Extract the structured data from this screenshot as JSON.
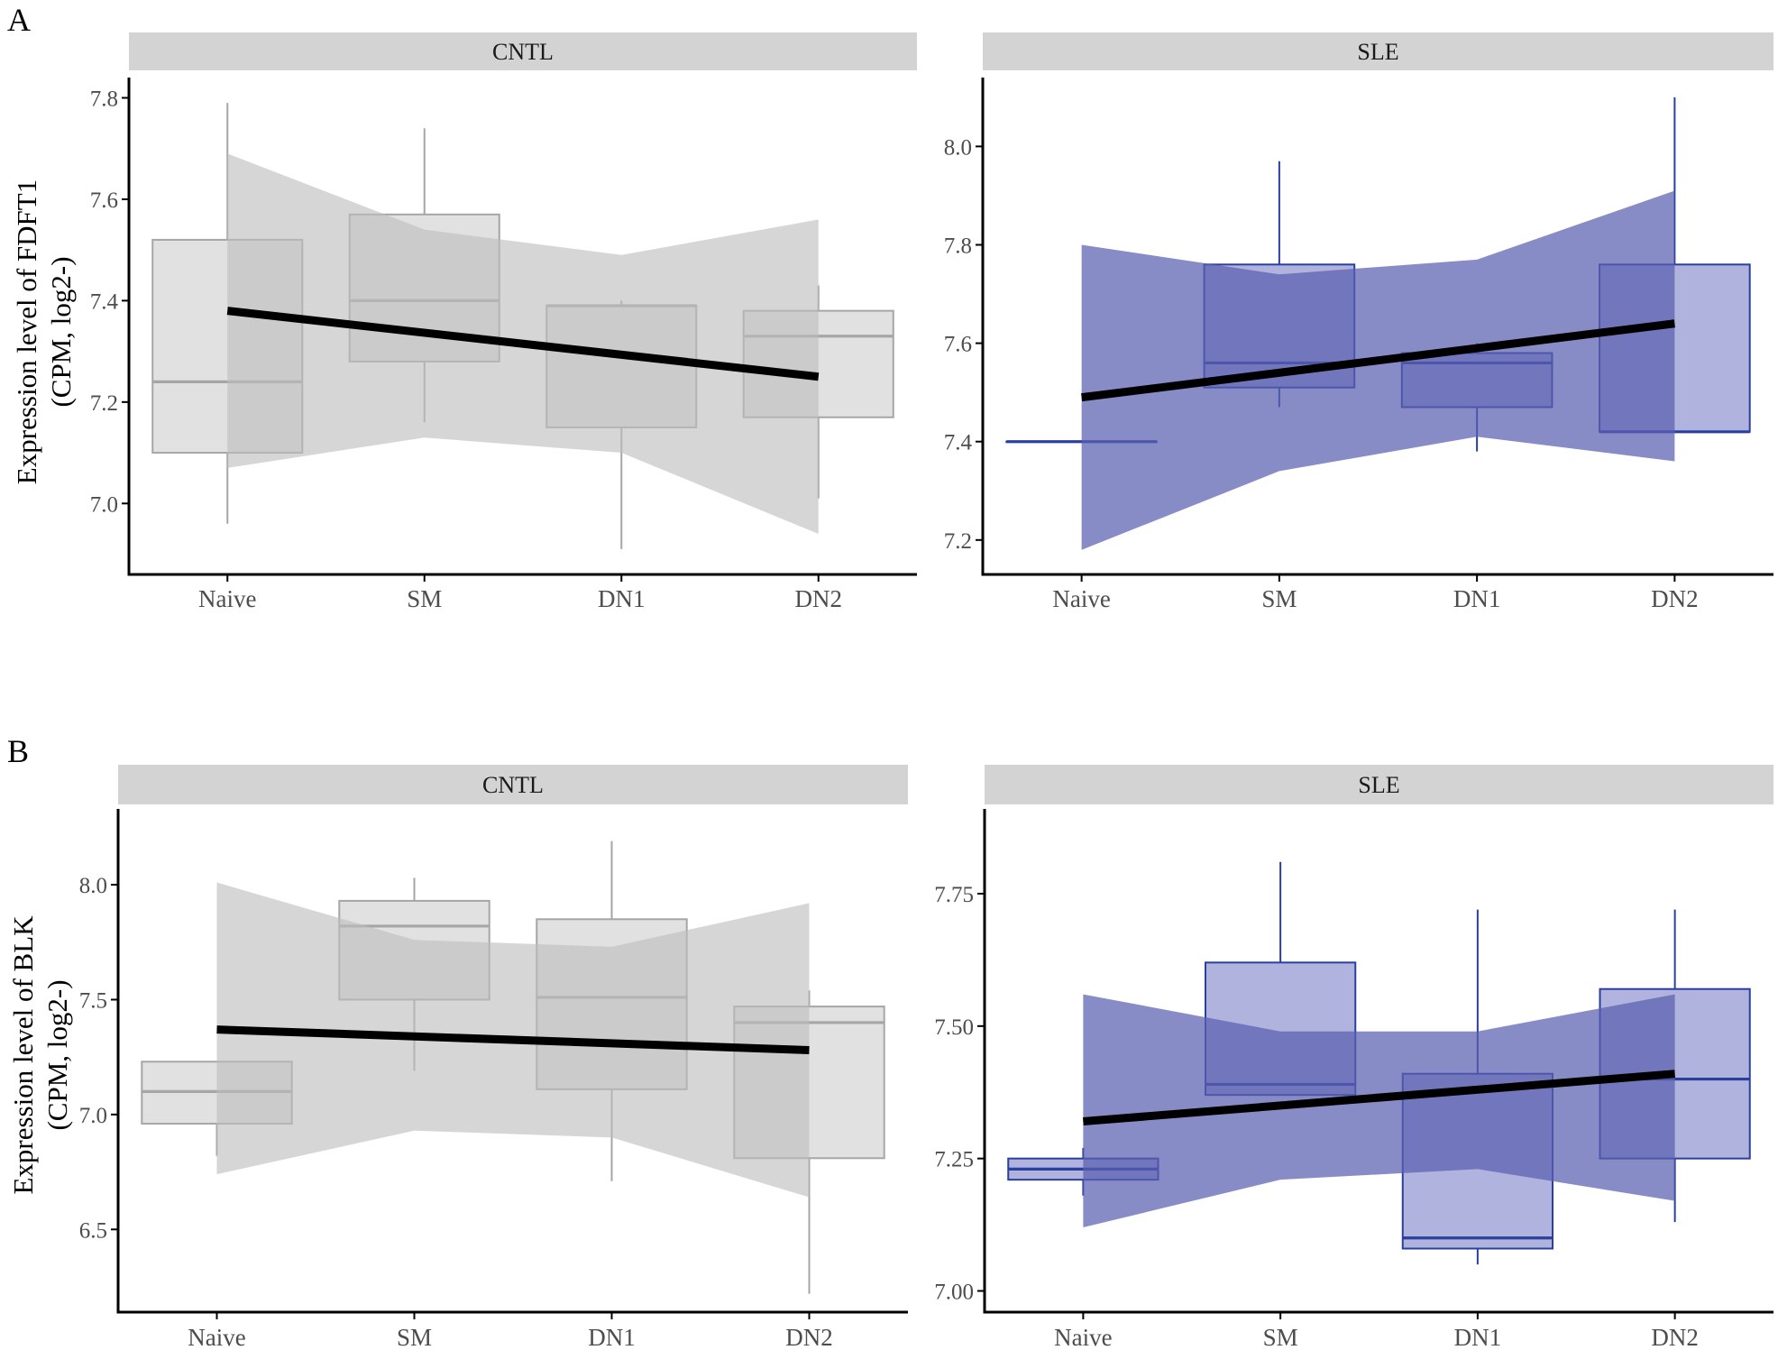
{
  "panel_labels": [
    "A",
    "B"
  ],
  "y_label_lines": {
    "A": [
      "Expression level of FDFT1",
      "(CPM, log2-)"
    ],
    "B": [
      "Expression level of BLK",
      "(CPM, log2-)"
    ]
  },
  "colors": {
    "cntl_box_fill": "#e1e1e1",
    "cntl_box_stroke": "#a6a6a6",
    "cntl_ribbon": "#bdbdbd",
    "sle_box_fill": "#b0b3dd",
    "sle_box_stroke": "#2b3f9e",
    "sle_ribbon": "#5a5fb0",
    "strip_bg": "#d3d3d3",
    "trend": "#000000"
  },
  "chart_data": [
    {
      "id": "A-CNTL",
      "row": "A",
      "type": "box",
      "strip": "CNTL",
      "categories": [
        "Naive",
        "SM",
        "DN1",
        "DN2"
      ],
      "yticks": [
        "7.0",
        "7.2",
        "7.4",
        "7.6",
        "7.8"
      ],
      "ylim": [
        6.86,
        7.84
      ],
      "boxes": [
        {
          "min": 6.96,
          "q1": 7.1,
          "median": 7.24,
          "q3": 7.52,
          "max": 7.79
        },
        {
          "min": 7.16,
          "q1": 7.28,
          "median": 7.4,
          "q3": 7.57,
          "max": 7.74
        },
        {
          "min": 6.91,
          "q1": 7.15,
          "median": 7.39,
          "q3": 7.39,
          "max": 7.4
        },
        {
          "min": 7.01,
          "q1": 7.17,
          "median": 7.33,
          "q3": 7.38,
          "max": 7.43
        }
      ],
      "trend": {
        "start": 7.38,
        "end": 7.25
      },
      "ribbon": {
        "upper": [
          7.69,
          7.54,
          7.49,
          7.56
        ],
        "lower": [
          7.07,
          7.13,
          7.1,
          6.94
        ]
      }
    },
    {
      "id": "A-SLE",
      "row": "A",
      "type": "box",
      "strip": "SLE",
      "categories": [
        "Naive",
        "SM",
        "DN1",
        "DN2"
      ],
      "yticks": [
        "7.2",
        "7.4",
        "7.6",
        "7.8",
        "8.0"
      ],
      "ylim": [
        7.13,
        8.14
      ],
      "boxes": [
        {
          "min": 7.4,
          "q1": 7.4,
          "median": 7.4,
          "q3": 7.4,
          "max": 7.4
        },
        {
          "min": 7.47,
          "q1": 7.51,
          "median": 7.56,
          "q3": 7.76,
          "max": 7.97
        },
        {
          "min": 7.38,
          "q1": 7.47,
          "median": 7.56,
          "q3": 7.58,
          "max": 7.6
        },
        {
          "min": 7.42,
          "q1": 7.42,
          "median": 7.42,
          "q3": 7.76,
          "max": 8.1
        }
      ],
      "trend": {
        "start": 7.49,
        "end": 7.64
      },
      "ribbon": {
        "upper": [
          7.8,
          7.74,
          7.77,
          7.91
        ],
        "lower": [
          7.18,
          7.34,
          7.41,
          7.36
        ]
      }
    },
    {
      "id": "B-CNTL",
      "row": "B",
      "type": "box",
      "strip": "CNTL",
      "categories": [
        "Naive",
        "SM",
        "DN1",
        "DN2"
      ],
      "yticks": [
        "6.5",
        "7.0",
        "7.5",
        "8.0"
      ],
      "ylim": [
        6.14,
        8.33
      ],
      "boxes": [
        {
          "min": 6.82,
          "q1": 6.96,
          "median": 7.1,
          "q3": 7.23,
          "max": 7.23
        },
        {
          "min": 7.19,
          "q1": 7.5,
          "median": 7.82,
          "q3": 7.93,
          "max": 8.03
        },
        {
          "min": 6.71,
          "q1": 7.11,
          "median": 7.51,
          "q3": 7.85,
          "max": 8.19
        },
        {
          "min": 6.22,
          "q1": 6.81,
          "median": 7.4,
          "q3": 7.47,
          "max": 7.54
        }
      ],
      "trend": {
        "start": 7.37,
        "end": 7.28
      },
      "ribbon": {
        "upper": [
          8.01,
          7.76,
          7.73,
          7.92
        ],
        "lower": [
          6.74,
          6.93,
          6.9,
          6.64
        ]
      }
    },
    {
      "id": "B-SLE",
      "row": "B",
      "type": "box",
      "strip": "SLE",
      "categories": [
        "Naive",
        "SM",
        "DN1",
        "DN2"
      ],
      "yticks": [
        "7.00",
        "7.25",
        "7.50",
        "7.75"
      ],
      "ylim": [
        6.96,
        7.91
      ],
      "boxes": [
        {
          "min": 7.18,
          "q1": 7.21,
          "median": 7.23,
          "q3": 7.25,
          "max": 7.27
        },
        {
          "min": 7.37,
          "q1": 7.37,
          "median": 7.39,
          "q3": 7.62,
          "max": 7.81
        },
        {
          "min": 7.05,
          "q1": 7.08,
          "median": 7.1,
          "q3": 7.41,
          "max": 7.72
        },
        {
          "min": 7.13,
          "q1": 7.25,
          "median": 7.4,
          "q3": 7.57,
          "max": 7.72
        }
      ],
      "trend": {
        "start": 7.32,
        "end": 7.41
      },
      "ribbon": {
        "upper": [
          7.56,
          7.49,
          7.49,
          7.56
        ],
        "lower": [
          7.12,
          7.21,
          7.23,
          7.17
        ]
      }
    }
  ]
}
